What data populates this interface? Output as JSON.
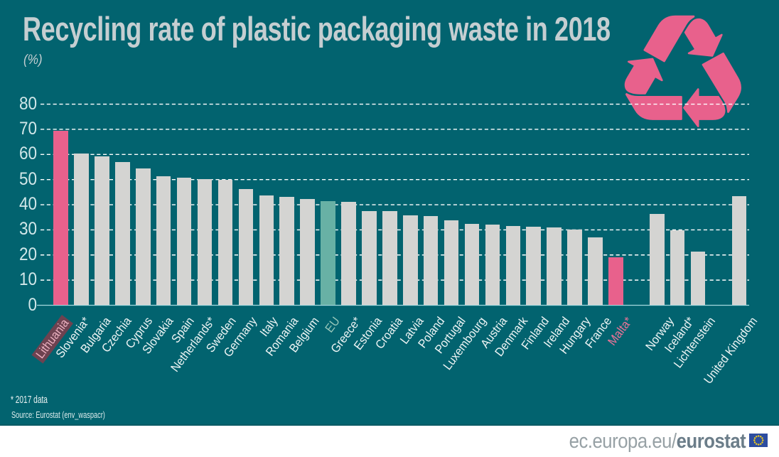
{
  "title": "Recycling rate of plastic packaging waste in 2018",
  "subtitle": "(%)",
  "footnotes": {
    "note": "* 2017 data",
    "source": "Source: Eurostat (env_waspacr)"
  },
  "footer": {
    "url_regular": "ec.europa.eu/",
    "url_bold": "eurostat"
  },
  "icons": {
    "recycling": "recycling-icon",
    "eu_flag": "eu-flag-icon"
  },
  "colors": {
    "background": "#02636F",
    "bar_default": "#D4D4D2",
    "bar_highlight_pink": "#E8618C",
    "bar_eu_teal": "#68B1A5",
    "label_default": "#EFF5F5",
    "label_highlight_pink": "#ED7398",
    "label_box_text": "#ECB2C1",
    "label_box_bg": "#6E4250",
    "label_eu_teal": "#96C6B9",
    "gridline": "#FFFFFF",
    "axis_line": "#A5D8DE",
    "title_text": "#C5CED1",
    "footer_band": "#FFFFFF",
    "logo_gray": "#97A1A5",
    "logo_bold": "#6B7D89",
    "eu_flag_blue": "#2D4DA0",
    "eu_flag_stars": "#F7D117",
    "recycling_icon_pink": "#E8618C"
  },
  "chart_data": {
    "type": "bar",
    "title": "Recycling rate of plastic packaging waste in 2018",
    "xlabel": "",
    "ylabel": "(%)",
    "ylim": [
      0,
      80
    ],
    "ytick_step": 10,
    "grid": "horizontal-dashed",
    "legend": "none",
    "footnote": "* 2017 data",
    "source": "Source: Eurostat (env_waspacr)",
    "bars": [
      {
        "label": "Lithuania",
        "value": 69.3,
        "color": "pink",
        "label_color": "boxed",
        "label_box": true
      },
      {
        "label": "Slovenia*",
        "value": 60.4,
        "color": "default",
        "label_color": "default"
      },
      {
        "label": "Bulgaria",
        "value": 59.2,
        "color": "default",
        "label_color": "default"
      },
      {
        "label": "Czechia",
        "value": 57.0,
        "color": "default",
        "label_color": "default"
      },
      {
        "label": "Cyprus",
        "value": 54.3,
        "color": "default",
        "label_color": "default"
      },
      {
        "label": "Slovakia",
        "value": 51.4,
        "color": "default",
        "label_color": "default"
      },
      {
        "label": "Spain",
        "value": 50.7,
        "color": "default",
        "label_color": "default"
      },
      {
        "label": "Netherlands*",
        "value": 50.3,
        "color": "default",
        "label_color": "default"
      },
      {
        "label": "Sweden",
        "value": 49.9,
        "color": "default",
        "label_color": "default"
      },
      {
        "label": "Germany",
        "value": 46.3,
        "color": "default",
        "label_color": "default"
      },
      {
        "label": "Italy",
        "value": 43.8,
        "color": "default",
        "label_color": "default"
      },
      {
        "label": "Romania",
        "value": 43.0,
        "color": "default",
        "label_color": "default"
      },
      {
        "label": "Belgium",
        "value": 42.4,
        "color": "default",
        "label_color": "default"
      },
      {
        "label": "EU",
        "value": 41.5,
        "color": "eu",
        "label_color": "eu"
      },
      {
        "label": "Greece*",
        "value": 41.2,
        "color": "default",
        "label_color": "default"
      },
      {
        "label": "Estonia",
        "value": 37.6,
        "color": "default",
        "label_color": "default"
      },
      {
        "label": "Croatia",
        "value": 37.4,
        "color": "default",
        "label_color": "default"
      },
      {
        "label": "Latvia",
        "value": 35.7,
        "color": "default",
        "label_color": "default"
      },
      {
        "label": "Poland",
        "value": 35.6,
        "color": "default",
        "label_color": "default"
      },
      {
        "label": "Portugal",
        "value": 33.9,
        "color": "default",
        "label_color": "default"
      },
      {
        "label": "Luxembourg",
        "value": 32.3,
        "color": "default",
        "label_color": "default"
      },
      {
        "label": "Austria",
        "value": 32.1,
        "color": "default",
        "label_color": "default"
      },
      {
        "label": "Denmark",
        "value": 31.4,
        "color": "default",
        "label_color": "default"
      },
      {
        "label": "Finland",
        "value": 31.1,
        "color": "default",
        "label_color": "default"
      },
      {
        "label": "Ireland",
        "value": 30.9,
        "color": "default",
        "label_color": "default"
      },
      {
        "label": "Hungary",
        "value": 30.0,
        "color": "default",
        "label_color": "default"
      },
      {
        "label": "France",
        "value": 26.9,
        "color": "default",
        "label_color": "default"
      },
      {
        "label": "Malta*",
        "value": 19.2,
        "color": "pink",
        "label_color": "pink"
      },
      {
        "label": "Norway",
        "value": 36.2,
        "color": "default",
        "label_color": "default",
        "gap_before": true
      },
      {
        "label": "Iceland*",
        "value": 29.9,
        "color": "default",
        "label_color": "default"
      },
      {
        "label": "Lichtenstein",
        "value": 21.3,
        "color": "default",
        "label_color": "default"
      },
      {
        "label": "United Kingdom",
        "value": 43.5,
        "color": "default",
        "label_color": "default",
        "gap_before": true
      }
    ]
  }
}
